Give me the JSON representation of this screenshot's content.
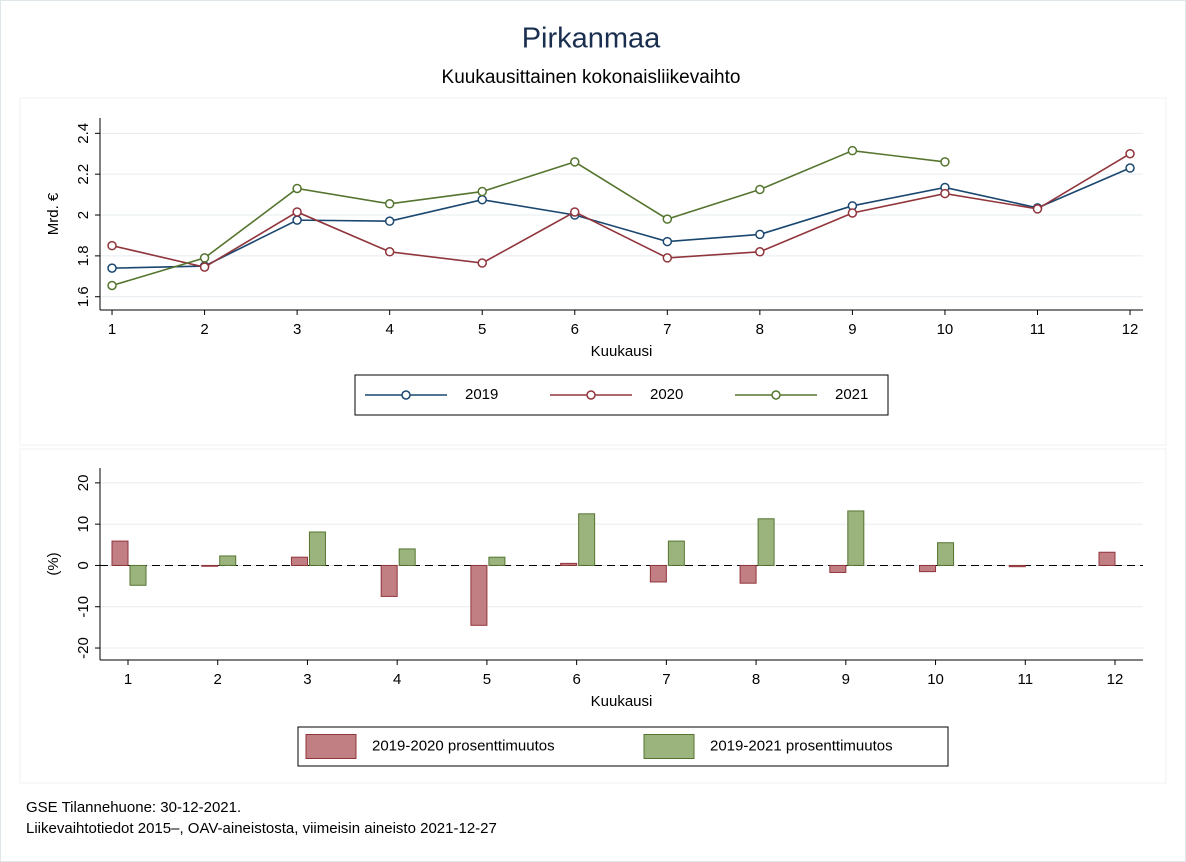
{
  "chart_data": [
    {
      "type": "line",
      "title": "Pirkanmaa",
      "subtitle": "Kuukausittainen kokonaisliikevaihto",
      "xlabel": "Kuukausi",
      "ylabel": "Mrd. €",
      "x": [
        1,
        2,
        3,
        4,
        5,
        6,
        7,
        8,
        9,
        10,
        11,
        12
      ],
      "xlim": [
        0.87,
        12.14
      ],
      "xticks": [
        1,
        2,
        3,
        4,
        5,
        6,
        7,
        8,
        9,
        10,
        11,
        12
      ],
      "ylim": [
        1.535,
        2.475
      ],
      "yticks": [
        1.6,
        1.8,
        2,
        2.2,
        2.4
      ],
      "grid": true,
      "series": [
        {
          "name": "2019",
          "color": "#1a476f",
          "values": [
            1.74,
            1.75,
            1.975,
            1.97,
            2.075,
            2.0,
            1.87,
            1.905,
            2.045,
            2.135,
            2.035,
            2.23
          ]
        },
        {
          "name": "2020",
          "color": "#90353b",
          "values": [
            1.85,
            1.745,
            2.015,
            1.82,
            1.765,
            2.015,
            1.79,
            1.82,
            2.01,
            2.105,
            2.03,
            2.3
          ]
        },
        {
          "name": "2021",
          "color": "#55752f",
          "values": [
            1.655,
            1.79,
            2.13,
            2.055,
            2.115,
            2.26,
            1.98,
            2.125,
            2.315,
            2.26,
            null,
            null
          ]
        }
      ]
    },
    {
      "type": "bar",
      "xlabel": "Kuukausi",
      "ylabel": "(%)",
      "categories": [
        "1",
        "2",
        "3",
        "4",
        "5",
        "6",
        "7",
        "8",
        "9",
        "10",
        "11",
        "12"
      ],
      "ylim": [
        -22.9,
        23.6
      ],
      "yticks": [
        -20,
        -10,
        0,
        10,
        20
      ],
      "grid": true,
      "refline": 0,
      "series": [
        {
          "name": "2019-2020 prosenttimuutos",
          "color": "#c17f83",
          "edgecolor": "#90353b",
          "values": [
            5.9,
            -0.2,
            2,
            -7.5,
            -14.5,
            0.5,
            -4,
            -4.3,
            -1.7,
            -1.5,
            -0.3,
            3.2
          ]
        },
        {
          "name": "2019-2021 prosenttimuutos",
          "color": "#9bb47e",
          "edgecolor": "#55752f",
          "values": [
            -4.8,
            2.3,
            8.1,
            4,
            2,
            12.5,
            5.9,
            11.3,
            13.2,
            5.5,
            null,
            null
          ]
        }
      ]
    }
  ],
  "footnotes": [
    "GSE Tilannehuone: 30-12-2021.",
    "Liikevaihtotiedot 2015–, OAV-aineistosta, viimeisin aineisto 2021-12-27"
  ]
}
